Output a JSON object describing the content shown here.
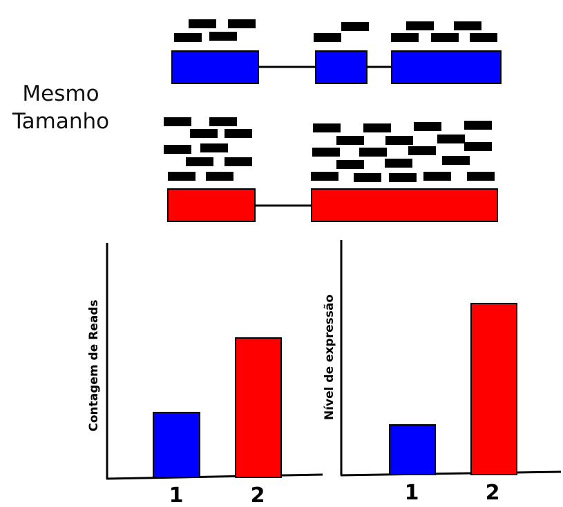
{
  "labels": {
    "line1": "Mesmo",
    "line2": "Tamanho"
  },
  "colors": {
    "gene1": "#0000ff",
    "gene2": "#ff0000",
    "read": "#000000",
    "axis": "#000000"
  },
  "charts": [
    {
      "ylabel": "Contagem de Reads",
      "categories": [
        "1",
        "2"
      ],
      "values": [
        0.37,
        0.8
      ]
    },
    {
      "ylabel": "Nível de expressão",
      "categories": [
        "1",
        "2"
      ],
      "values": [
        0.29,
        1.0
      ]
    }
  ]
}
